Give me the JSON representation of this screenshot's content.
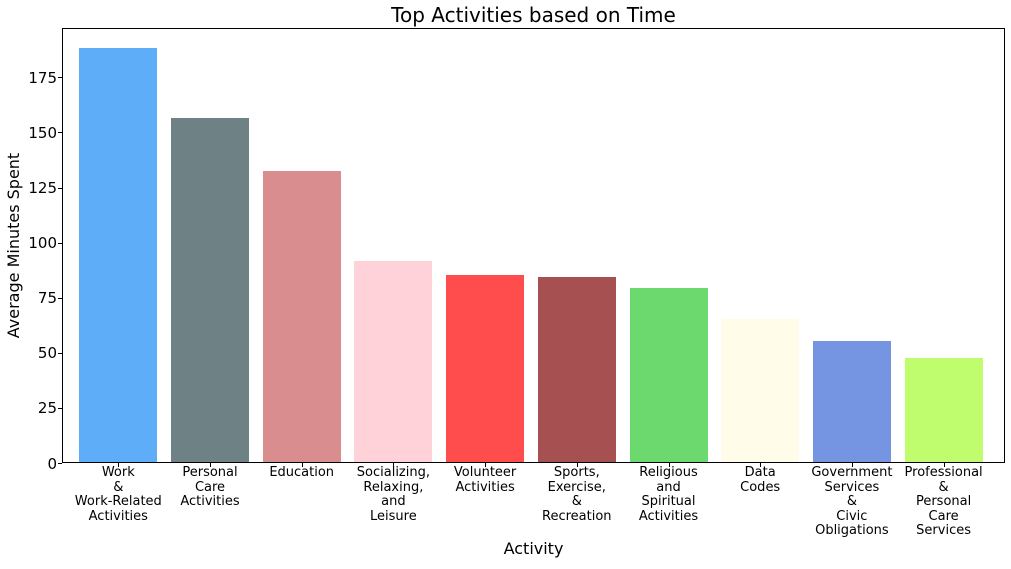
{
  "chart_data": {
    "type": "bar",
    "title": "Top Activities based on Time",
    "xlabel": "Activity",
    "ylabel": "Average Minutes Spent",
    "categories": [
      "Work\n&\nWork-Related\nActivities",
      "Personal\nCare\nActivities",
      "Education",
      "Socializing,\nRelaxing,\nand\nLeisure",
      "Volunteer\nActivities",
      "Sports,\nExercise,\n&\nRecreation",
      "Religious\nand\nSpiritual\nActivities",
      "Data\nCodes",
      "Government\nServices\n&\nCivic\nObligations",
      "Professional\n&\nPersonal\nCare\nServices"
    ],
    "values": [
      188,
      156,
      132,
      91,
      85,
      84,
      79,
      65,
      55,
      47
    ],
    "bar_colors": [
      "#5dadf8",
      "#6e8184",
      "#d98d8f",
      "#ffd1d9",
      "#ff4d4d",
      "#a65052",
      "#6bd96d",
      "#fffde9",
      "#7595e3",
      "#bffc6e"
    ],
    "yticks": [
      0,
      25,
      50,
      75,
      100,
      125,
      150,
      175
    ],
    "ylim": [
      0,
      197.4
    ],
    "grid": false,
    "legend_position": "none"
  }
}
